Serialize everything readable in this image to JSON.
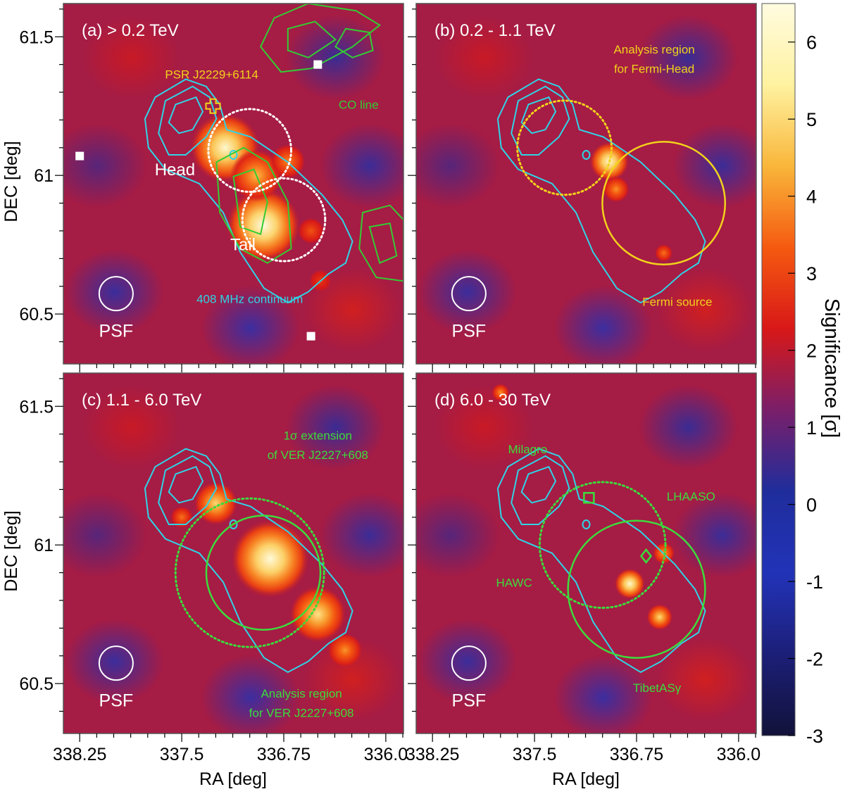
{
  "chart_data": {
    "type": "heatmap",
    "xlabel": "RA [deg]",
    "ylabel": "DEC [deg]",
    "x_ticks": [
      "338.25",
      "337.5",
      "336.75",
      "336.0"
    ],
    "y_ticks": [
      "61.5",
      "61",
      "60.5"
    ],
    "xlim": [
      338.37,
      335.87
    ],
    "ylim": [
      60.32,
      61.62
    ],
    "colorbar": {
      "label": "Significance [σ]",
      "range": [
        -3,
        6.5
      ],
      "ticks": [
        "6",
        "5",
        "4",
        "3",
        "2",
        "1",
        "0",
        "-1",
        "-2",
        "-3"
      ],
      "colors": [
        "#12123a",
        "#1c1f78",
        "#2233b8",
        "#1f2d9c",
        "#7a1f6a",
        "#d81818",
        "#f55a10",
        "#f9b63a",
        "#fff2a0",
        "#fffbe0"
      ]
    },
    "colors": {
      "radio_contour": "#2fd4e6",
      "co_contour": "#33cc33",
      "annotation_yellow": "#f2d21b",
      "annotation_green": "#3cdc3c",
      "psf_and_labels": "#ffffff"
    },
    "panels": [
      {
        "id": "a",
        "label": "(a) > 0.2 TeV",
        "blobs": [
          {
            "ra": 336.9,
            "dec": 60.82,
            "sigma": 6.5,
            "size": 0.17
          },
          {
            "ra": 337.18,
            "dec": 61.1,
            "sigma": 6.2,
            "size": 0.16
          },
          {
            "ra": 336.95,
            "dec": 61.0,
            "sigma": 4.5,
            "size": 0.12
          },
          {
            "ra": 336.72,
            "dec": 61.05,
            "sigma": 3.8,
            "size": 0.08
          },
          {
            "ra": 336.55,
            "dec": 60.8,
            "sigma": 3.2,
            "size": 0.06
          },
          {
            "ra": 336.48,
            "dec": 60.62,
            "sigma": 2.8,
            "size": 0.05
          }
        ],
        "circles": [
          {
            "ra": 337.0,
            "dec": 61.09,
            "r": 0.145,
            "style": "dotted",
            "color": "#ffffff"
          },
          {
            "ra": 336.75,
            "dec": 60.84,
            "r": 0.145,
            "style": "dotted",
            "color": "#ffffff"
          }
        ],
        "markers": [
          {
            "type": "cross",
            "ra": 337.27,
            "dec": 61.25,
            "color": "#f2d21b"
          },
          {
            "type": "white-square",
            "ra": 338.25,
            "dec": 61.07
          },
          {
            "type": "white-square",
            "ra": 336.5,
            "dec": 61.4
          },
          {
            "type": "white-square",
            "ra": 336.55,
            "dec": 60.42
          }
        ],
        "texts": [
          {
            "text": "PSR J2229+6114",
            "ra": 337.28,
            "dec": 61.35,
            "color": "#f2d21b",
            "size": 17
          },
          {
            "text": "CO line",
            "ra": 336.2,
            "dec": 61.24,
            "color": "#33cc33",
            "size": 17
          },
          {
            "text": "Head",
            "ra": 337.55,
            "dec": 61.0,
            "color": "#ffffff",
            "size": 24
          },
          {
            "text": "Tail",
            "ra": 337.05,
            "dec": 60.73,
            "color": "#ffffff",
            "size": 24
          },
          {
            "text": "408 MHz continuum",
            "ra": 337.0,
            "dec": 60.54,
            "color": "#2fd4e6",
            "size": 17
          }
        ]
      },
      {
        "id": "b",
        "label": "(b) 0.2 - 1.1 TeV",
        "blobs": [
          {
            "ra": 336.95,
            "dec": 61.05,
            "sigma": 6.2,
            "size": 0.09
          },
          {
            "ra": 336.9,
            "dec": 60.95,
            "sigma": 4.0,
            "size": 0.06
          },
          {
            "ra": 336.55,
            "dec": 60.72,
            "sigma": 3.6,
            "size": 0.04
          }
        ],
        "circles": [
          {
            "ra": 337.28,
            "dec": 61.1,
            "r": 0.165,
            "style": "dotted",
            "color": "#f2d21b"
          },
          {
            "ra": 336.55,
            "dec": 60.9,
            "r": 0.215,
            "style": "solid",
            "color": "#f2d21b"
          }
        ],
        "markers": [],
        "texts": [
          {
            "text": "Analysis region",
            "ra": 336.62,
            "dec": 61.44,
            "color": "#f2d21b",
            "size": 17
          },
          {
            "text": "for Fermi-Head",
            "ra": 336.62,
            "dec": 61.37,
            "color": "#f2d21b",
            "size": 17
          },
          {
            "text": "Fermi source",
            "ra": 336.45,
            "dec": 60.53,
            "color": "#f2d21b",
            "size": 17
          }
        ]
      },
      {
        "id": "c",
        "label": "(c) 1.1 - 6.0 TeV",
        "blobs": [
          {
            "ra": 336.85,
            "dec": 60.95,
            "sigma": 6.4,
            "size": 0.18
          },
          {
            "ra": 337.25,
            "dec": 61.15,
            "sigma": 5.0,
            "size": 0.1
          },
          {
            "ra": 336.5,
            "dec": 60.75,
            "sigma": 5.2,
            "size": 0.13
          },
          {
            "ra": 336.3,
            "dec": 60.62,
            "sigma": 4.0,
            "size": 0.08
          },
          {
            "ra": 337.5,
            "dec": 61.1,
            "sigma": 3.6,
            "size": 0.05
          }
        ],
        "circles": [
          {
            "ra": 336.9,
            "dec": 60.9,
            "r": 0.2,
            "style": "solid",
            "color": "#3cdc3c"
          },
          {
            "ra": 337.0,
            "dec": 60.9,
            "r": 0.26,
            "style": "dotted",
            "color": "#3cdc3c"
          }
        ],
        "markers": [],
        "texts": [
          {
            "text": "1σ extension",
            "ra": 336.5,
            "dec": 61.38,
            "color": "#3cdc3c",
            "size": 17
          },
          {
            "text": "of VER J2227+608",
            "ra": 336.5,
            "dec": 61.31,
            "color": "#3cdc3c",
            "size": 17
          },
          {
            "text": "Analysis region",
            "ra": 336.62,
            "dec": 60.45,
            "color": "#3cdc3c",
            "size": 17
          },
          {
            "text": "for VER J2227+608",
            "ra": 336.62,
            "dec": 60.38,
            "color": "#3cdc3c",
            "size": 17
          }
        ]
      },
      {
        "id": "d",
        "label": "(d) 6.0 - 30 TeV",
        "blobs": [
          {
            "ra": 336.8,
            "dec": 60.86,
            "sigma": 6.2,
            "size": 0.07
          },
          {
            "ra": 336.58,
            "dec": 60.74,
            "sigma": 5.0,
            "size": 0.06
          },
          {
            "ra": 336.55,
            "dec": 60.97,
            "sigma": 4.2,
            "size": 0.05
          },
          {
            "ra": 337.75,
            "dec": 61.55,
            "sigma": 4.0,
            "size": 0.04
          }
        ],
        "circles": [
          {
            "ra": 336.75,
            "dec": 60.84,
            "r": 0.24,
            "style": "solid",
            "color": "#3cdc3c"
          },
          {
            "ra": 337.0,
            "dec": 61.0,
            "r": 0.22,
            "style": "dotted",
            "color": "#3cdc3c"
          }
        ],
        "markers": [
          {
            "type": "green-square",
            "ra": 337.1,
            "dec": 61.17
          },
          {
            "type": "green-diamond",
            "ra": 336.68,
            "dec": 60.96
          }
        ],
        "texts": [
          {
            "text": "Milagro",
            "ra": 337.55,
            "dec": 61.33,
            "color": "#3cdc3c",
            "size": 17
          },
          {
            "text": "LHAASO",
            "ra": 336.35,
            "dec": 61.16,
            "color": "#3cdc3c",
            "size": 17
          },
          {
            "text": "HAWC",
            "ra": 337.65,
            "dec": 60.85,
            "color": "#3cdc3c",
            "size": 17
          },
          {
            "text": "TibetASγ",
            "ra": 336.6,
            "dec": 60.47,
            "color": "#3cdc3c",
            "size": 17
          }
        ]
      }
    ]
  },
  "psf_label": "PSF"
}
